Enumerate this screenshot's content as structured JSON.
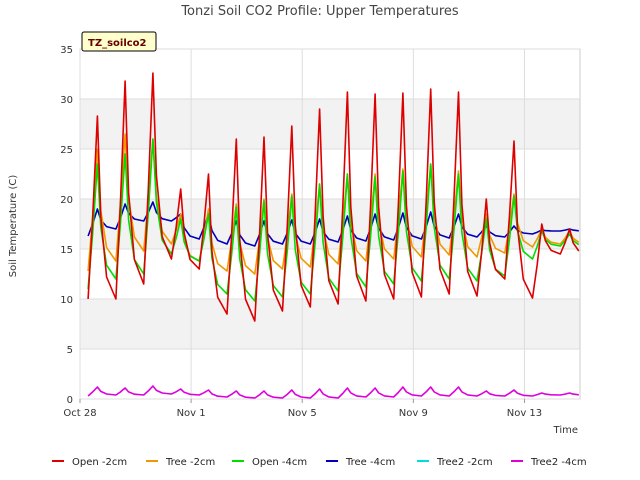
{
  "chart_data": {
    "type": "line",
    "title": "Tonzi Soil CO2 Profile: Upper Temperatures",
    "xlabel": "Time",
    "ylabel": "Soil Temperature (C)",
    "tag": "TZ_soilco2",
    "ylim": [
      0,
      35
    ],
    "yticks": [
      0,
      5,
      10,
      15,
      20,
      25,
      30,
      35
    ],
    "xlim": [
      "2023-10-28",
      "2023-11-15"
    ],
    "xticks": [
      {
        "date": "2023-10-28",
        "label": "Oct 28"
      },
      {
        "date": "2023-11-01",
        "label": "Nov 1"
      },
      {
        "date": "2023-11-05",
        "label": "Nov 5"
      },
      {
        "date": "2023-11-09",
        "label": "Nov 9"
      },
      {
        "date": "2023-11-13",
        "label": "Nov 13"
      }
    ],
    "grid": true,
    "legend_position": "bottom",
    "colors": {
      "Open -2cm": "#dd0000",
      "Tree -2cm": "#ee9900",
      "Open -4cm": "#00dd00",
      "Tree -4cm": "#0000bb",
      "Tree2 -2cm": "#00dddd",
      "Tree2 -4cm": "#dd00dd"
    },
    "series_daily_extremes": {
      "x_dates": [
        "2023-10-28",
        "2023-10-29",
        "2023-10-30",
        "2023-10-31",
        "2023-11-01",
        "2023-11-02",
        "2023-11-03",
        "2023-11-04",
        "2023-11-05",
        "2023-11-06",
        "2023-11-07",
        "2023-11-08",
        "2023-11-09",
        "2023-11-10",
        "2023-11-11",
        "2023-11-12",
        "2023-11-13",
        "2023-11-14"
      ],
      "Open -2cm": {
        "min": [
          10.0,
          10.0,
          11.5,
          14.0,
          13.0,
          8.5,
          7.8,
          8.8,
          9.2,
          9.5,
          9.8,
          10.0,
          10.2,
          10.5,
          10.3,
          12.0,
          10.1,
          14.5
        ],
        "max": [
          28.3,
          31.8,
          32.6,
          21.0,
          22.5,
          26.0,
          26.2,
          27.3,
          29.0,
          30.7,
          30.5,
          30.6,
          31.0,
          30.7,
          20.0,
          25.8,
          17.5,
          17.0
        ]
      },
      "Tree -2cm": {
        "min": [
          12.8,
          13.8,
          14.8,
          15.5,
          13.8,
          12.8,
          12.5,
          13.0,
          13.2,
          13.5,
          13.8,
          14.0,
          14.2,
          14.4,
          14.2,
          14.6,
          15.2,
          15.5
        ],
        "max": [
          25.0,
          26.5,
          26.0,
          18.5,
          19.0,
          19.5,
          20.0,
          20.5,
          21.5,
          22.5,
          22.5,
          23.0,
          23.5,
          22.8,
          18.5,
          20.5,
          17.0,
          16.8
        ]
      },
      "Open -4cm": {
        "min": [
          11.0,
          12.0,
          12.5,
          14.5,
          13.8,
          10.5,
          9.8,
          10.2,
          10.5,
          10.8,
          11.2,
          11.5,
          11.8,
          12.0,
          11.8,
          12.3,
          14.0,
          15.3
        ],
        "max": [
          23.5,
          24.5,
          26.0,
          18.0,
          18.5,
          19.2,
          19.8,
          20.3,
          21.5,
          22.5,
          22.2,
          22.8,
          23.5,
          22.5,
          18.0,
          20.3,
          16.8,
          16.5
        ]
      },
      "Tree -4cm": {
        "min": [
          16.3,
          17.0,
          17.8,
          17.8,
          16.0,
          15.5,
          15.3,
          15.5,
          15.5,
          15.7,
          15.8,
          15.9,
          16.0,
          16.1,
          16.2,
          16.2,
          16.5,
          16.8
        ],
        "max": [
          19.0,
          19.5,
          19.7,
          18.5,
          18.5,
          17.8,
          17.8,
          17.9,
          18.0,
          18.3,
          18.5,
          18.6,
          18.7,
          18.5,
          17.3,
          17.3,
          16.9,
          17.0
        ]
      },
      "Tree2 -2cm": {
        "min": [],
        "max": []
      },
      "Tree2 -4cm": {
        "min": [
          0.3,
          0.4,
          0.4,
          0.5,
          0.4,
          0.2,
          0.1,
          0.1,
          0.1,
          0.1,
          0.2,
          0.2,
          0.3,
          0.3,
          0.3,
          0.3,
          0.3,
          0.4
        ],
        "max": [
          1.2,
          1.1,
          1.3,
          1.0,
          0.9,
          0.8,
          0.8,
          0.9,
          1.0,
          1.1,
          1.1,
          1.2,
          1.2,
          1.2,
          0.8,
          0.9,
          0.6,
          0.6
        ]
      }
    },
    "series": [
      {
        "name": "Open -2cm"
      },
      {
        "name": "Tree -2cm"
      },
      {
        "name": "Open -4cm"
      },
      {
        "name": "Tree -4cm"
      },
      {
        "name": "Tree2 -2cm"
      },
      {
        "name": "Tree2 -4cm"
      }
    ]
  }
}
